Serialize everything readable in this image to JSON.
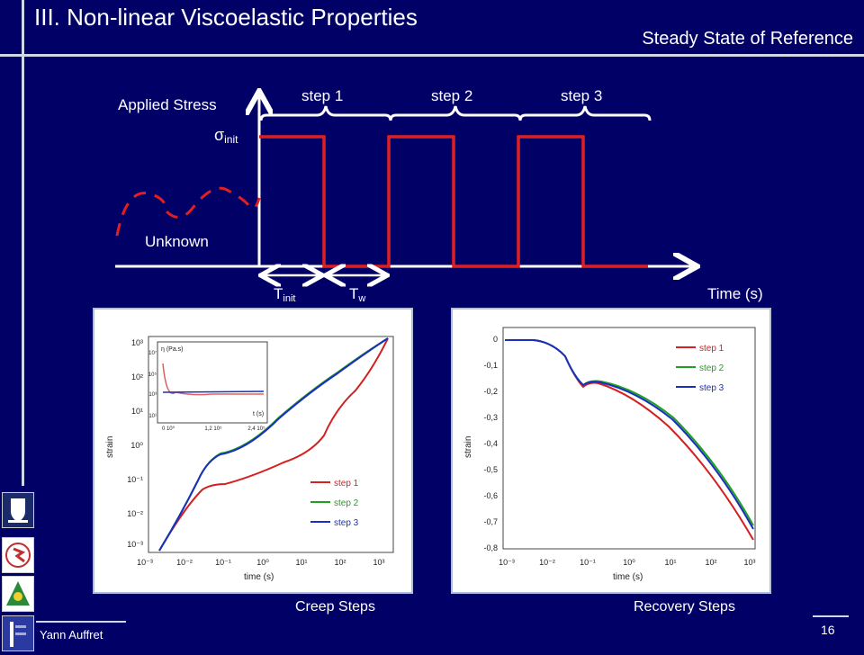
{
  "slide": {
    "title": "III. Non-linear Viscoelastic  Properties",
    "subtitle": "Steady State of Reference",
    "author": "Yann Auffret",
    "page_number": "16"
  },
  "diagram": {
    "y_label": "Applied Stress",
    "stress_symbol": "σ",
    "stress_sub": "init",
    "unknown_label": "Unknown",
    "x_label": "Time (s)",
    "steps": [
      "step 1",
      "step 2",
      "step 3"
    ],
    "t_init": "T",
    "t_init_sub": "init",
    "t_w": "T",
    "t_w_sub": "w",
    "colors": {
      "stress": "#e02020",
      "axis": "#ffffff"
    }
  },
  "creep_panel": {
    "caption": "Creep Steps",
    "ylabel": "strain",
    "xlabel": "time (s)",
    "x_ticks": [
      "10⁻³",
      "10⁻²",
      "10⁻¹",
      "10⁰",
      "10¹",
      "10²",
      "10³"
    ],
    "y_ticks": [
      "10³",
      "10²",
      "10¹",
      "10⁰",
      "10⁻¹",
      "10⁻²",
      "10⁻³"
    ],
    "legend": [
      "step 1",
      "step 2",
      "step 3"
    ],
    "inset_ylabel": "η (Pa.s)",
    "inset_xlabel": "t (s)",
    "inset_x_ticks": [
      "0 10⁰",
      "1,2 10⁵",
      "2,4 10⁵"
    ],
    "inset_y_ticks": [
      "10⁷",
      "10⁵",
      "10³",
      "10¹"
    ]
  },
  "recovery_panel": {
    "caption": "Recovery Steps",
    "ylabel": "strain",
    "xlabel": "time (s)",
    "x_ticks": [
      "10⁻³",
      "10⁻²",
      "10⁻¹",
      "10⁰",
      "10¹",
      "10²",
      "10³"
    ],
    "y_ticks": [
      "0",
      "-0,1",
      "-0,2",
      "-0,3",
      "-0,4",
      "-0,5",
      "-0,6",
      "-0,7",
      "-0,8"
    ],
    "legend": [
      "step 1",
      "step 2",
      "step 3"
    ]
  },
  "series_colors": [
    "#d42020",
    "#20a020",
    "#1a2fc0"
  ]
}
